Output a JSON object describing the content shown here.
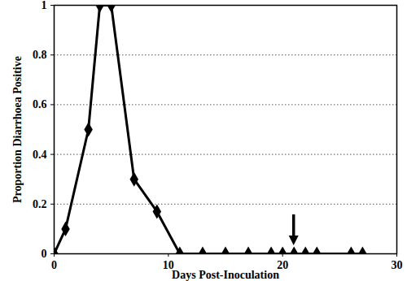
{
  "chart_data": {
    "type": "line",
    "x_label": "Days Post-Inoculation",
    "y_label": "Proportion Diarrhoea Positive",
    "x": [
      0,
      1,
      3,
      4,
      5,
      7,
      9,
      11,
      13,
      15,
      17,
      19,
      20,
      21,
      22,
      23,
      26,
      27
    ],
    "values": [
      0,
      0.1,
      0.5,
      1,
      1,
      0.3,
      0.17,
      0,
      0,
      0,
      0,
      0,
      0,
      0,
      0,
      0,
      0,
      0
    ],
    "color": "#000000",
    "marker": "diamond",
    "xlim": [
      0,
      30
    ],
    "xticks": [
      0,
      10,
      20,
      30
    ],
    "ylim": [
      0,
      1
    ],
    "yticks": [
      0,
      0.2,
      0.4,
      0.6,
      0.8,
      1
    ],
    "grid": true,
    "arrow_x": 21
  }
}
